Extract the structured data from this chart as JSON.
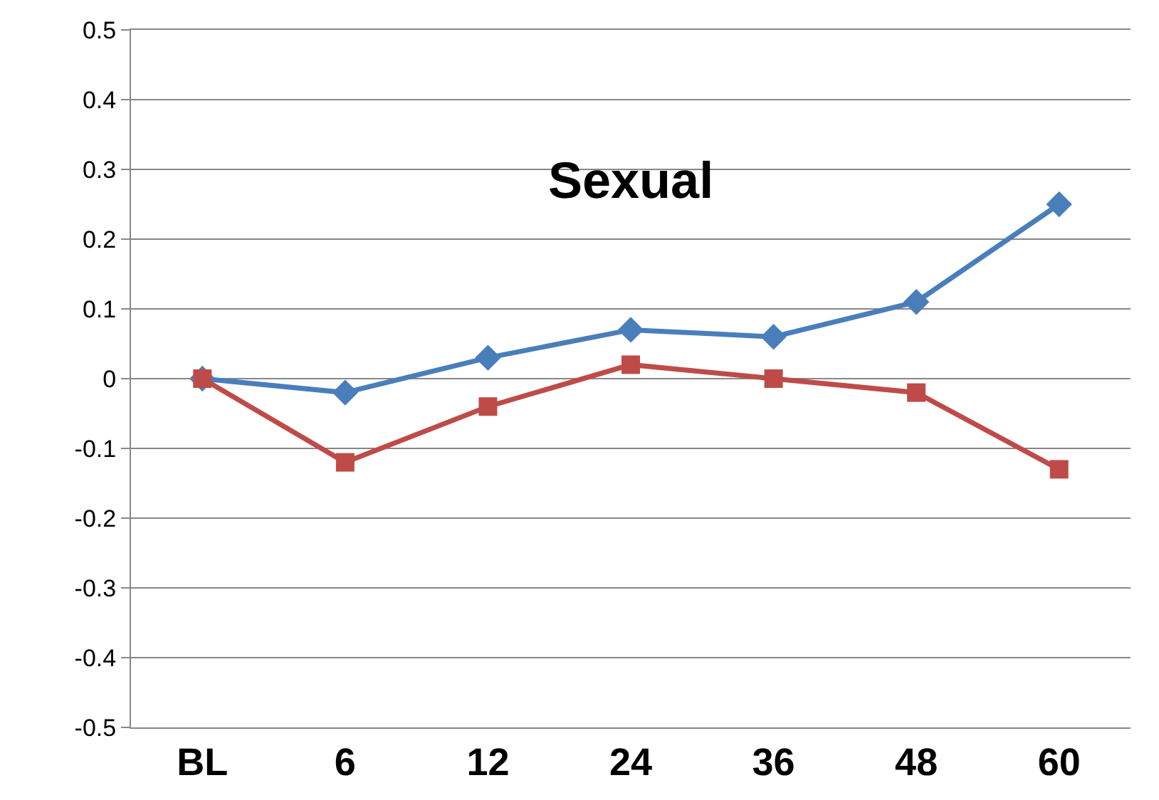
{
  "chart_data": {
    "type": "line",
    "title": "Sexual",
    "categories": [
      "BL",
      "6",
      "12",
      "24",
      "36",
      "48",
      "60"
    ],
    "series": [
      {
        "color": "#4a7ebb",
        "marker": "diamond",
        "values": [
          0,
          -0.02,
          0.03,
          0.07,
          0.06,
          0.11,
          0.25
        ]
      },
      {
        "color": "#be4b48",
        "marker": "square",
        "values": [
          0,
          -0.12,
          -0.04,
          0.02,
          0,
          -0.02,
          -0.13
        ]
      }
    ],
    "ylim": [
      -0.5,
      0.5
    ],
    "yticks": [
      -0.5,
      -0.4,
      -0.3,
      -0.2,
      -0.1,
      0,
      0.1,
      0.2,
      0.3,
      0.4,
      0.5
    ],
    "grid": "y",
    "line_style": "solid"
  }
}
